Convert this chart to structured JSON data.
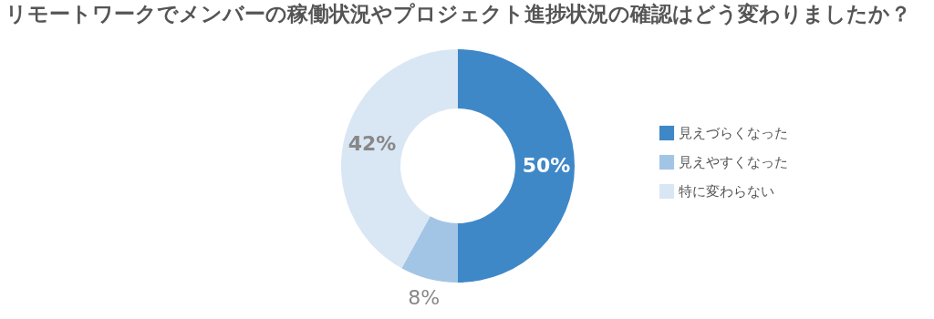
{
  "chart_data": {
    "type": "donut",
    "title": "リモートワークでメンバーの稼働状況やプロジェクト進捗状況の確認はどう変わりましたか？",
    "categories": [
      "見えづらくなった",
      "見えやすくなった",
      "特に変わらない"
    ],
    "values": [
      50,
      8,
      42
    ],
    "colors": [
      "#3f88c8",
      "#a3c5e5",
      "#d9e6f4"
    ],
    "value_labels": [
      "50%",
      "8%",
      "42%"
    ],
    "legend": "right"
  }
}
